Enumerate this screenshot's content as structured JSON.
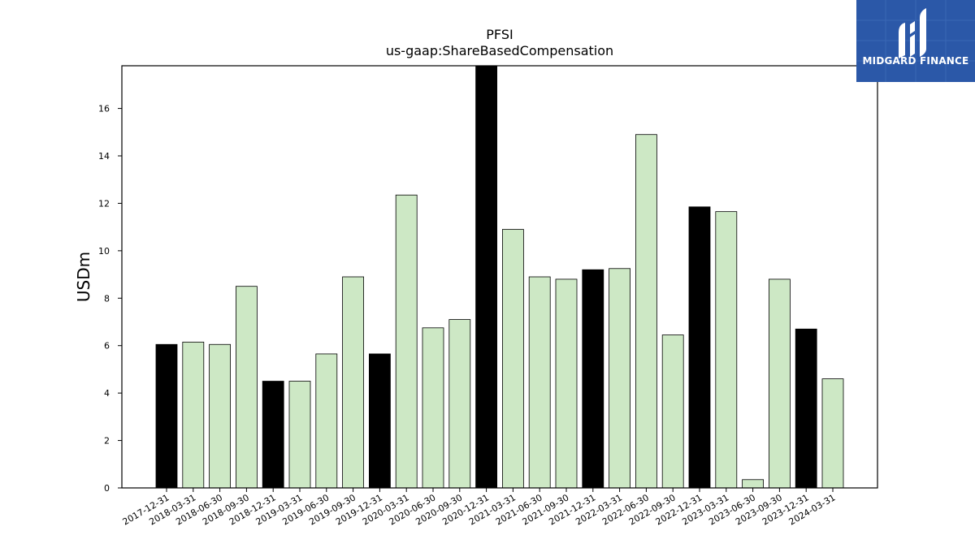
{
  "logo": {
    "text": "MIDGARD FINANCE",
    "background": "#2b58a8"
  },
  "chart_data": {
    "type": "bar",
    "title": "PFSI",
    "subtitle": "us-gaap:ShareBasedCompensation",
    "xlabel": "",
    "ylabel": "USDm",
    "ylim": [
      0,
      17.8
    ],
    "yticks": [
      0,
      2,
      4,
      6,
      8,
      10,
      12,
      14,
      16
    ],
    "grid": false,
    "legend": "none",
    "colors": {
      "q4": "#000000",
      "other": "#cde8c5",
      "edge": "#000000"
    },
    "categories": [
      "2017-12-31",
      "2018-03-31",
      "2018-06-30",
      "2018-09-30",
      "2018-12-31",
      "2019-03-31",
      "2019-06-30",
      "2019-09-30",
      "2019-12-31",
      "2020-03-31",
      "2020-06-30",
      "2020-09-30",
      "2020-12-31",
      "2021-03-31",
      "2021-06-30",
      "2021-09-30",
      "2021-12-31",
      "2022-03-31",
      "2022-06-30",
      "2022-09-30",
      "2022-12-31",
      "2023-03-31",
      "2023-06-30",
      "2023-09-30",
      "2023-12-31",
      "2024-03-31"
    ],
    "values": [
      6.05,
      6.15,
      6.05,
      8.5,
      4.5,
      4.5,
      5.65,
      8.9,
      5.65,
      12.35,
      6.75,
      7.1,
      17.8,
      10.9,
      8.9,
      8.8,
      9.2,
      9.25,
      14.9,
      6.45,
      11.85,
      11.65,
      0.35,
      8.8,
      6.7,
      4.6
    ],
    "highlight": [
      true,
      false,
      false,
      false,
      true,
      false,
      false,
      false,
      true,
      false,
      false,
      false,
      true,
      false,
      false,
      false,
      true,
      false,
      false,
      false,
      true,
      false,
      false,
      false,
      true,
      false
    ]
  }
}
